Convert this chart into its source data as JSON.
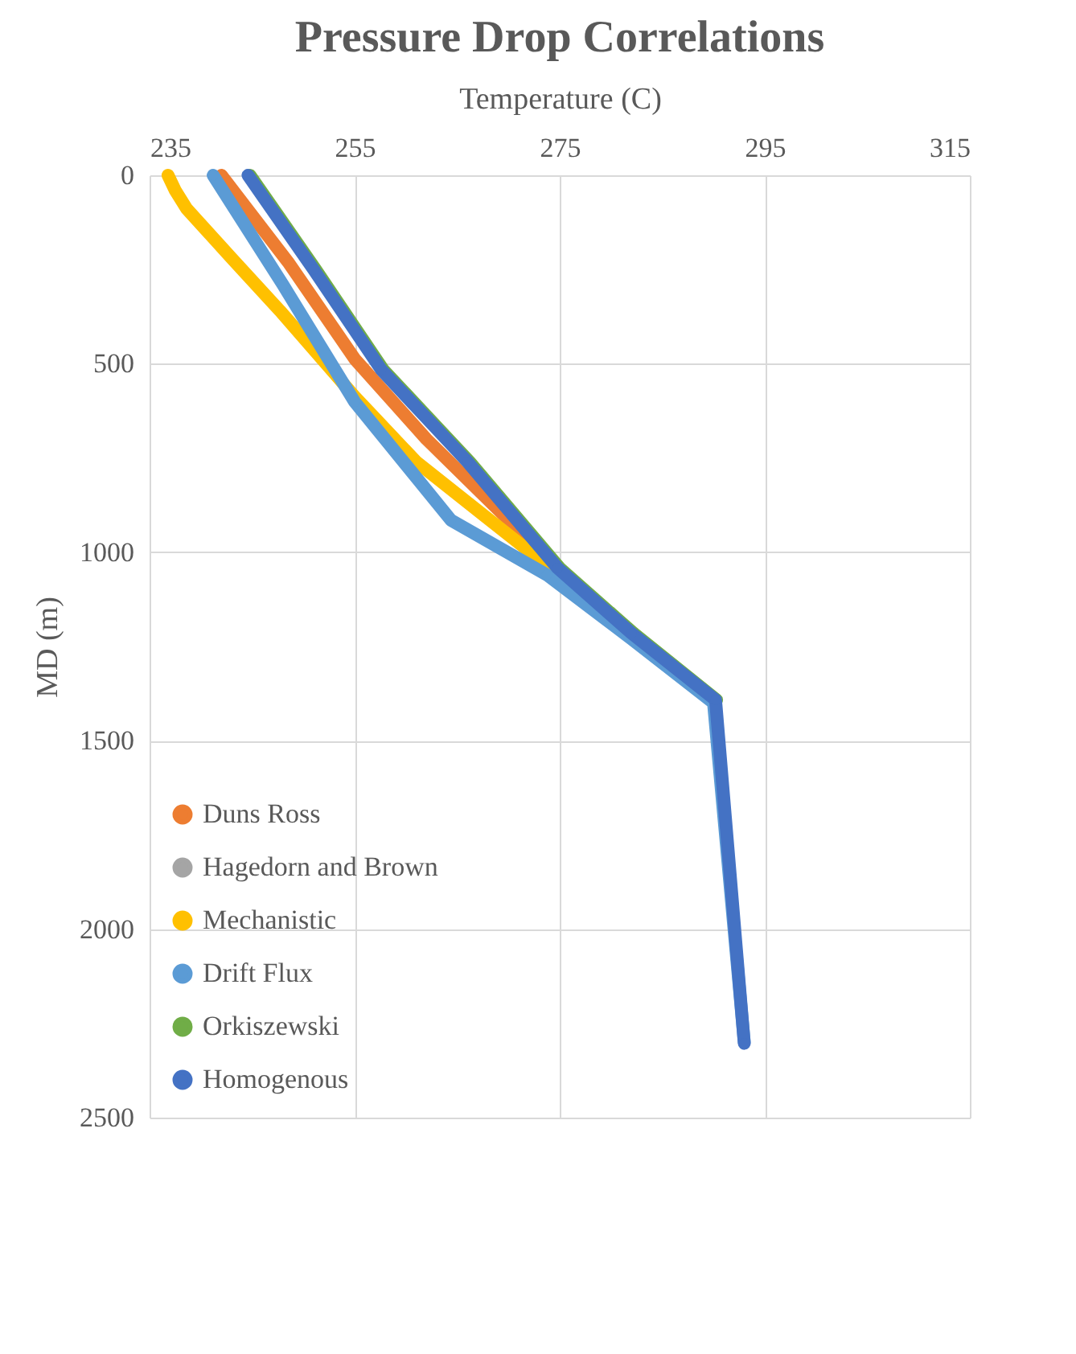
{
  "chart_data": {
    "type": "line",
    "title": "Pressure Drop Correlations",
    "xlabel": "Temperature (C)",
    "ylabel": "MD (m)",
    "xlim": [
      235,
      315
    ],
    "xticks": [
      235,
      255,
      275,
      295,
      315
    ],
    "ylim": [
      2500,
      0
    ],
    "yticks": [
      0,
      500,
      1000,
      1500,
      2000,
      2500
    ],
    "grid": true,
    "legend": "bottom left",
    "marker": "circle",
    "line_style": "solid",
    "series": [
      {
        "name": "Duns Ross",
        "color": "#ed7d31",
        "x": [
          242,
          248.5,
          255,
          262,
          268,
          274,
          282
        ],
        "values": [
          0,
          230,
          487,
          700,
          860,
          1020,
          1215
        ]
      },
      {
        "name": "Hagedorn and Brown",
        "color": "#a5a5a5"
      },
      {
        "name": "Mechanistic",
        "color": "#ffc000",
        "x": [
          236.8,
          237.5,
          238.6,
          243,
          247.7,
          255,
          261,
          267.5,
          274,
          282
        ],
        "values": [
          0,
          40,
          88,
          220,
          359,
          587,
          760,
          900,
          1040,
          1220
        ]
      },
      {
        "name": "Drift Flux",
        "color": "#5b9bd5",
        "x": [
          241.2,
          248,
          255,
          264.4,
          273.75,
          282,
          290,
          293
        ],
        "values": [
          0,
          290,
          601,
          915,
          1060,
          1230,
          1400,
          2300
        ]
      },
      {
        "name": "Orkiszewski",
        "color": "#70ad47",
        "x": [
          244.8,
          251.2,
          257.8,
          266.2,
          275,
          282.2,
          290.3
        ],
        "values": [
          0,
          250,
          516,
          760,
          1042,
          1215,
          1392
        ]
      },
      {
        "name": "Homogenous",
        "color": "#4472c4",
        "x": [
          244.6,
          251,
          257.6,
          266,
          274.8,
          282,
          290.2,
          293
        ],
        "values": [
          0,
          250,
          516,
          760,
          1042,
          1215,
          1392,
          2303
        ]
      }
    ]
  }
}
